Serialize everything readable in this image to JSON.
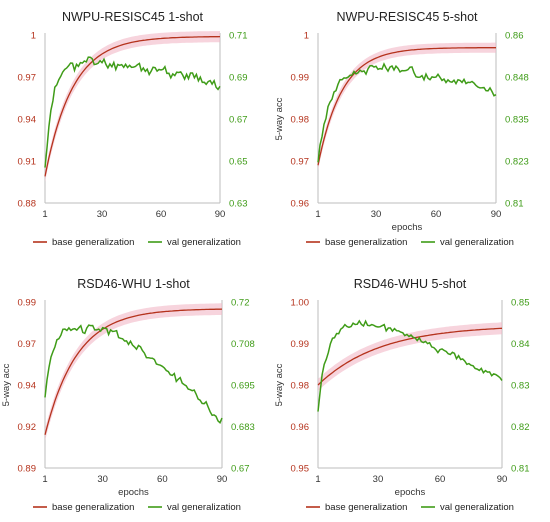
{
  "colors": {
    "base": "#b5331d",
    "base_band": "#f2b8c6",
    "val": "#3f9c18",
    "axis": "#bdbdbd"
  },
  "chart_data": [
    {
      "type": "line",
      "title": "NWPU-RESISC45 1-shot",
      "xlabel": "",
      "ylabel": "",
      "x_ticks": [
        "1",
        "30",
        "60",
        "90"
      ],
      "xlim": [
        1,
        90
      ],
      "y_left": {
        "ticks": [
          "0.88",
          "0.91",
          "0.94",
          "0.97",
          "1"
        ],
        "lim": [
          0.88,
          1.0
        ]
      },
      "y_right": {
        "ticks": [
          "0.63",
          "0.65",
          "0.67",
          "0.69",
          "0.71"
        ],
        "lim": [
          0.63,
          0.71
        ]
      },
      "legend": [
        "base generalization",
        "val generalization"
      ],
      "series": [
        {
          "name": "base generalization",
          "axis": "left",
          "shape": "rise",
          "start": 0.899,
          "end": 0.999,
          "k": 14,
          "band": 0.004,
          "seed": 3,
          "x": [
            1,
            5,
            10,
            15,
            20,
            25,
            30,
            40,
            50,
            60,
            70,
            80,
            90
          ],
          "values": [
            0.899,
            0.934,
            0.955,
            0.968,
            0.977,
            0.983,
            0.987,
            0.991,
            0.994,
            0.996,
            0.998,
            0.998,
            0.999
          ]
        },
        {
          "name": "val generalization",
          "axis": "right",
          "shape": "rise_fall",
          "start": 0.646,
          "end": 0.687,
          "peak": 0.697,
          "peakx": 28,
          "k": 7,
          "noise": 0.0035,
          "seed": 11,
          "x": [
            1,
            5,
            10,
            15,
            20,
            25,
            30,
            40,
            50,
            60,
            70,
            80,
            90
          ],
          "values": [
            0.646,
            0.67,
            0.682,
            0.689,
            0.693,
            0.696,
            0.697,
            0.696,
            0.695,
            0.694,
            0.692,
            0.69,
            0.687
          ]
        }
      ]
    },
    {
      "type": "line",
      "title": "NWPU-RESISC45 5-shot",
      "xlabel": "epochs",
      "ylabel": "5-way acc",
      "x_ticks": [
        "1",
        "30",
        "60",
        "90"
      ],
      "xlim": [
        1,
        90
      ],
      "y_left": {
        "ticks": [
          "0.96",
          "0.97",
          "0.98",
          "0.99",
          "1"
        ],
        "lim": [
          0.96,
          1.0
        ]
      },
      "y_right": {
        "ticks": [
          "0.81",
          "0.823",
          "0.835",
          "0.848",
          "0.86"
        ],
        "lim": [
          0.81,
          0.86
        ]
      },
      "legend": [
        "base generalization",
        "val generalization"
      ],
      "series": [
        {
          "name": "base generalization",
          "axis": "left",
          "shape": "rise",
          "start": 0.969,
          "end": 0.997,
          "k": 12,
          "band": 0.0012,
          "seed": 5,
          "x": [
            1,
            5,
            10,
            15,
            20,
            30,
            40,
            50,
            60,
            70,
            80,
            90
          ],
          "values": [
            0.969,
            0.979,
            0.984,
            0.987,
            0.989,
            0.991,
            0.993,
            0.994,
            0.995,
            0.996,
            0.996,
            0.997
          ]
        },
        {
          "name": "val generalization",
          "axis": "right",
          "shape": "rise_fall",
          "start": 0.822,
          "end": 0.843,
          "peak": 0.85,
          "peakx": 35,
          "k": 6,
          "noise": 0.0016,
          "seed": 17,
          "x": [
            1,
            5,
            10,
            15,
            20,
            30,
            40,
            50,
            60,
            70,
            80,
            90
          ],
          "values": [
            0.822,
            0.835,
            0.842,
            0.846,
            0.848,
            0.85,
            0.849,
            0.849,
            0.848,
            0.847,
            0.845,
            0.843
          ]
        }
      ]
    },
    {
      "type": "line",
      "title": "RSD46-WHU 1-shot",
      "xlabel": "epochs",
      "ylabel": "5-way acc",
      "x_ticks": [
        "1",
        "30",
        "60",
        "90"
      ],
      "xlim": [
        1,
        90
      ],
      "y_left": {
        "ticks": [
          "0.89",
          "0.92",
          "0.94",
          "0.97",
          "0.99"
        ],
        "lim": [
          0.89,
          0.99
        ]
      },
      "y_right": {
        "ticks": [
          "0.67",
          "0.683",
          "0.695",
          "0.708",
          "0.72"
        ],
        "lim": [
          0.67,
          0.72
        ]
      },
      "legend": [
        "base generalization",
        "val generalization"
      ],
      "series": [
        {
          "name": "base generalization",
          "axis": "left",
          "shape": "rise",
          "start": 0.91,
          "end": 0.986,
          "k": 16,
          "band": 0.0035,
          "seed": 7,
          "x": [
            1,
            5,
            10,
            15,
            20,
            30,
            40,
            50,
            60,
            70,
            80,
            90
          ],
          "values": [
            0.91,
            0.935,
            0.95,
            0.96,
            0.966,
            0.972,
            0.976,
            0.979,
            0.981,
            0.983,
            0.985,
            0.986
          ]
        },
        {
          "name": "val generalization",
          "axis": "right",
          "shape": "rise_fall",
          "start": 0.69,
          "end": 0.685,
          "peak": 0.712,
          "peakx": 28,
          "k": 8,
          "noise": 0.0018,
          "seed": 23,
          "x": [
            1,
            5,
            10,
            15,
            20,
            30,
            40,
            50,
            60,
            70,
            80,
            90
          ],
          "values": [
            0.69,
            0.702,
            0.707,
            0.709,
            0.71,
            0.712,
            0.709,
            0.705,
            0.7,
            0.696,
            0.692,
            0.685
          ]
        }
      ]
    },
    {
      "type": "line",
      "title": "RSD46-WHU 5-shot",
      "xlabel": "epochs",
      "ylabel": "5-way acc",
      "x_ticks": [
        "1",
        "30",
        "60",
        "90"
      ],
      "xlim": [
        1,
        90
      ],
      "y_left": {
        "ticks": [
          "0.95",
          "0.96",
          "0.98",
          "0.99",
          "1.00"
        ],
        "lim": [
          0.95,
          1.0
        ]
      },
      "y_right": {
        "ticks": [
          "0.81",
          "0.82",
          "0.83",
          "0.84",
          "0.85"
        ],
        "lim": [
          0.81,
          0.85
        ]
      },
      "legend": [
        "base generalization",
        "val generalization"
      ],
      "series": [
        {
          "name": "base generalization",
          "axis": "left",
          "shape": "rise",
          "start": 0.975,
          "end": 0.993,
          "k": 30,
          "band": 0.0018,
          "seed": 13,
          "x": [
            1,
            5,
            10,
            20,
            30,
            40,
            50,
            60,
            70,
            80,
            90
          ],
          "values": [
            0.975,
            0.979,
            0.982,
            0.985,
            0.987,
            0.989,
            0.99,
            0.991,
            0.992,
            0.992,
            0.993
          ]
        },
        {
          "name": "val generalization",
          "axis": "right",
          "shape": "rise_fall",
          "start": 0.823,
          "end": 0.831,
          "peak": 0.845,
          "peakx": 22,
          "k": 5,
          "noise": 0.0011,
          "seed": 29,
          "x": [
            1,
            5,
            10,
            20,
            30,
            40,
            50,
            60,
            70,
            80,
            90
          ],
          "values": [
            0.823,
            0.837,
            0.842,
            0.845,
            0.844,
            0.843,
            0.841,
            0.839,
            0.836,
            0.833,
            0.831
          ]
        }
      ]
    }
  ]
}
